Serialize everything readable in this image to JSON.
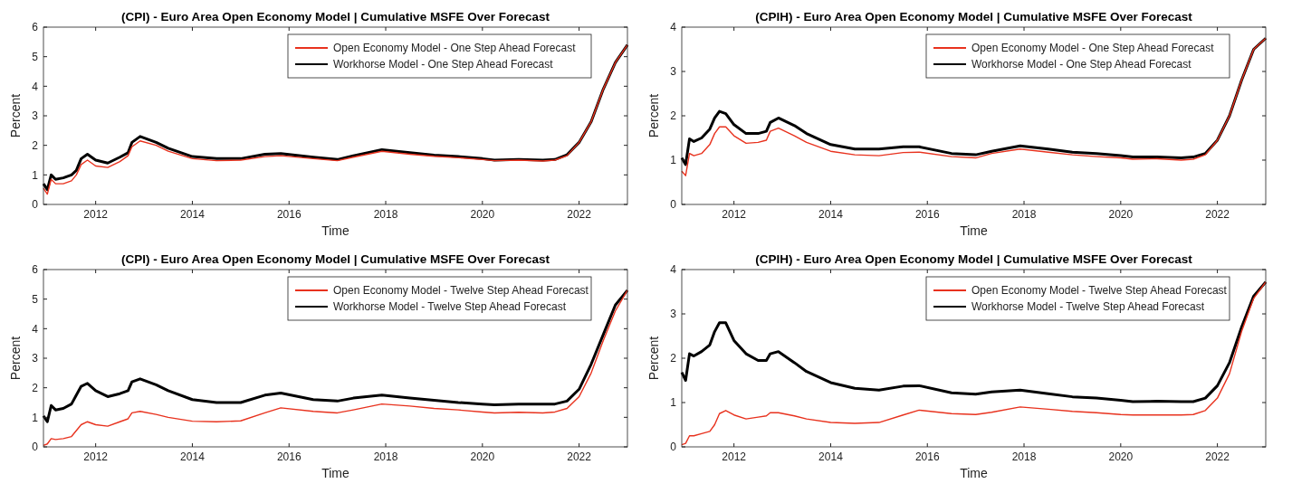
{
  "chart_data": [
    {
      "type": "line",
      "title": "(CPI) - Euro Area Open Economy Model | Cumulative  MSFE Over Forecast",
      "xlabel": "Time",
      "ylabel": "Percent",
      "legend": "top right",
      "grid": false,
      "xlim": [
        2010.92,
        2023.0
      ],
      "xticks": [
        2012,
        2014,
        2016,
        2018,
        2020,
        2022
      ],
      "ylim": [
        0,
        6
      ],
      "yticks": [
        0,
        1,
        2,
        3,
        4,
        5,
        6
      ],
      "x": [
        2010.92,
        2011.0,
        2011.08,
        2011.17,
        2011.33,
        2011.5,
        2011.6,
        2011.7,
        2011.83,
        2012.0,
        2012.25,
        2012.5,
        2012.67,
        2012.75,
        2012.92,
        2013.25,
        2013.5,
        2014.0,
        2014.5,
        2015.0,
        2015.5,
        2015.83,
        2016.5,
        2017.0,
        2017.33,
        2017.92,
        2018.5,
        2019.0,
        2019.5,
        2020.0,
        2020.25,
        2020.75,
        2021.25,
        2021.5,
        2021.75,
        2022.0,
        2022.25,
        2022.5,
        2022.75,
        2023.0
      ],
      "series": [
        {
          "name": "Open Economy Model - One Step Ahead Forecast",
          "color": "#e8321e",
          "values": [
            0.55,
            0.35,
            0.85,
            0.7,
            0.7,
            0.8,
            1.0,
            1.35,
            1.5,
            1.3,
            1.25,
            1.45,
            1.65,
            1.95,
            2.15,
            2.0,
            1.8,
            1.55,
            1.48,
            1.5,
            1.62,
            1.65,
            1.55,
            1.48,
            1.6,
            1.8,
            1.7,
            1.63,
            1.58,
            1.52,
            1.48,
            1.5,
            1.47,
            1.5,
            1.65,
            2.1,
            2.8,
            3.9,
            4.8,
            5.4
          ]
        },
        {
          "name": "Workhorse Model - One Step Ahead Forecast",
          "color": "#000000",
          "values": [
            0.7,
            0.5,
            1.0,
            0.85,
            0.9,
            1.0,
            1.15,
            1.55,
            1.7,
            1.5,
            1.4,
            1.6,
            1.75,
            2.1,
            2.3,
            2.1,
            1.9,
            1.62,
            1.55,
            1.55,
            1.7,
            1.72,
            1.6,
            1.52,
            1.65,
            1.85,
            1.75,
            1.67,
            1.62,
            1.55,
            1.5,
            1.52,
            1.5,
            1.52,
            1.68,
            2.1,
            2.8,
            3.9,
            4.8,
            5.4
          ]
        }
      ]
    },
    {
      "type": "line",
      "title": "(CPIH) - Euro Area Open Economy Model | Cumulative  MSFE Over Forecast",
      "xlabel": "Time",
      "ylabel": "Percent",
      "legend": "top right",
      "grid": false,
      "xlim": [
        2010.92,
        2023.0
      ],
      "xticks": [
        2012,
        2014,
        2016,
        2018,
        2020,
        2022
      ],
      "ylim": [
        0,
        4
      ],
      "yticks": [
        0,
        1,
        2,
        3,
        4
      ],
      "x": [
        2010.92,
        2011.0,
        2011.08,
        2011.17,
        2011.33,
        2011.5,
        2011.6,
        2011.7,
        2011.83,
        2012.0,
        2012.25,
        2012.5,
        2012.67,
        2012.75,
        2012.92,
        2013.25,
        2013.5,
        2014.0,
        2014.5,
        2015.0,
        2015.5,
        2015.83,
        2016.5,
        2017.0,
        2017.33,
        2017.92,
        2018.5,
        2019.0,
        2019.5,
        2020.0,
        2020.25,
        2020.75,
        2021.25,
        2021.5,
        2021.75,
        2022.0,
        2022.25,
        2022.5,
        2022.75,
        2023.0
      ],
      "series": [
        {
          "name": "Open Economy Model - One Step Ahead Forecast",
          "color": "#e8321e",
          "values": [
            0.75,
            0.65,
            1.15,
            1.1,
            1.15,
            1.35,
            1.6,
            1.75,
            1.75,
            1.55,
            1.38,
            1.4,
            1.45,
            1.65,
            1.72,
            1.55,
            1.4,
            1.2,
            1.12,
            1.1,
            1.17,
            1.18,
            1.08,
            1.05,
            1.15,
            1.25,
            1.18,
            1.12,
            1.08,
            1.05,
            1.02,
            1.03,
            1.0,
            1.02,
            1.12,
            1.45,
            2.0,
            2.8,
            3.5,
            3.75
          ]
        },
        {
          "name": "Workhorse Model - One Step Ahead Forecast",
          "color": "#000000",
          "values": [
            1.05,
            0.9,
            1.48,
            1.42,
            1.5,
            1.7,
            1.95,
            2.1,
            2.05,
            1.8,
            1.6,
            1.6,
            1.65,
            1.85,
            1.95,
            1.78,
            1.6,
            1.35,
            1.25,
            1.25,
            1.3,
            1.3,
            1.15,
            1.12,
            1.2,
            1.32,
            1.25,
            1.18,
            1.15,
            1.1,
            1.07,
            1.07,
            1.05,
            1.07,
            1.15,
            1.45,
            2.0,
            2.8,
            3.5,
            3.75
          ]
        }
      ]
    },
    {
      "type": "line",
      "title": "(CPI) - Euro Area Open Economy Model | Cumulative  MSFE Over Forecast",
      "xlabel": "Time",
      "ylabel": "Percent",
      "legend": "top right",
      "grid": false,
      "xlim": [
        2010.92,
        2023.0
      ],
      "xticks": [
        2012,
        2014,
        2016,
        2018,
        2020,
        2022
      ],
      "ylim": [
        0,
        6
      ],
      "yticks": [
        0,
        1,
        2,
        3,
        4,
        5,
        6
      ],
      "x": [
        2010.92,
        2011.0,
        2011.08,
        2011.17,
        2011.33,
        2011.5,
        2011.6,
        2011.7,
        2011.83,
        2012.0,
        2012.25,
        2012.5,
        2012.67,
        2012.75,
        2012.92,
        2013.25,
        2013.5,
        2014.0,
        2014.5,
        2015.0,
        2015.5,
        2015.83,
        2016.5,
        2017.0,
        2017.33,
        2017.92,
        2018.5,
        2019.0,
        2019.5,
        2020.0,
        2020.25,
        2020.75,
        2021.25,
        2021.5,
        2021.75,
        2022.0,
        2022.25,
        2022.5,
        2022.75,
        2023.0
      ],
      "series": [
        {
          "name": "Open Economy Model - Twelve Step Ahead Forecast",
          "color": "#e8321e",
          "values": [
            0.05,
            0.1,
            0.28,
            0.25,
            0.28,
            0.35,
            0.55,
            0.75,
            0.85,
            0.75,
            0.7,
            0.85,
            0.95,
            1.15,
            1.2,
            1.1,
            1.0,
            0.87,
            0.85,
            0.88,
            1.15,
            1.32,
            1.2,
            1.15,
            1.25,
            1.45,
            1.38,
            1.3,
            1.25,
            1.18,
            1.15,
            1.17,
            1.15,
            1.18,
            1.3,
            1.7,
            2.5,
            3.6,
            4.6,
            5.3
          ]
        },
        {
          "name": "Workhorse Model - Twelve Step Ahead Forecast",
          "color": "#000000",
          "values": [
            1.05,
            0.85,
            1.4,
            1.25,
            1.3,
            1.45,
            1.75,
            2.05,
            2.15,
            1.9,
            1.7,
            1.8,
            1.9,
            2.2,
            2.3,
            2.1,
            1.9,
            1.6,
            1.5,
            1.5,
            1.75,
            1.82,
            1.6,
            1.55,
            1.65,
            1.75,
            1.65,
            1.58,
            1.5,
            1.45,
            1.42,
            1.45,
            1.45,
            1.45,
            1.55,
            1.95,
            2.8,
            3.8,
            4.8,
            5.3
          ]
        }
      ]
    },
    {
      "type": "line",
      "title": "(CPIH) - Euro Area Open Economy Model | Cumulative  MSFE Over Forecast",
      "xlabel": "Time",
      "ylabel": "Percent",
      "legend": "top right",
      "grid": false,
      "xlim": [
        2010.92,
        2023.0
      ],
      "xticks": [
        2012,
        2014,
        2016,
        2018,
        2020,
        2022
      ],
      "ylim": [
        0,
        4
      ],
      "yticks": [
        0,
        1,
        2,
        3,
        4
      ],
      "x": [
        2010.92,
        2011.0,
        2011.08,
        2011.17,
        2011.33,
        2011.5,
        2011.6,
        2011.7,
        2011.83,
        2012.0,
        2012.25,
        2012.5,
        2012.67,
        2012.75,
        2012.92,
        2013.25,
        2013.5,
        2014.0,
        2014.5,
        2015.0,
        2015.5,
        2015.83,
        2016.5,
        2017.0,
        2017.33,
        2017.92,
        2018.5,
        2019.0,
        2019.5,
        2020.0,
        2020.25,
        2020.75,
        2021.25,
        2021.5,
        2021.75,
        2022.0,
        2022.25,
        2022.5,
        2022.75,
        2023.0
      ],
      "series": [
        {
          "name": "Open Economy Model - Twelve Step Ahead Forecast",
          "color": "#e8321e",
          "values": [
            0.05,
            0.08,
            0.25,
            0.25,
            0.3,
            0.35,
            0.5,
            0.75,
            0.82,
            0.72,
            0.63,
            0.67,
            0.7,
            0.77,
            0.77,
            0.7,
            0.63,
            0.55,
            0.53,
            0.55,
            0.72,
            0.83,
            0.75,
            0.73,
            0.78,
            0.9,
            0.85,
            0.8,
            0.77,
            0.73,
            0.72,
            0.72,
            0.72,
            0.73,
            0.82,
            1.1,
            1.65,
            2.6,
            3.35,
            3.72
          ]
        },
        {
          "name": "Workhorse Model - Twelve Step Ahead Forecast",
          "color": "#000000",
          "values": [
            1.68,
            1.5,
            2.1,
            2.05,
            2.15,
            2.3,
            2.6,
            2.8,
            2.8,
            2.4,
            2.1,
            1.95,
            1.95,
            2.1,
            2.15,
            1.9,
            1.7,
            1.45,
            1.32,
            1.28,
            1.37,
            1.38,
            1.22,
            1.19,
            1.24,
            1.28,
            1.2,
            1.13,
            1.1,
            1.05,
            1.02,
            1.03,
            1.02,
            1.02,
            1.1,
            1.38,
            1.9,
            2.7,
            3.4,
            3.72
          ]
        }
      ]
    }
  ]
}
